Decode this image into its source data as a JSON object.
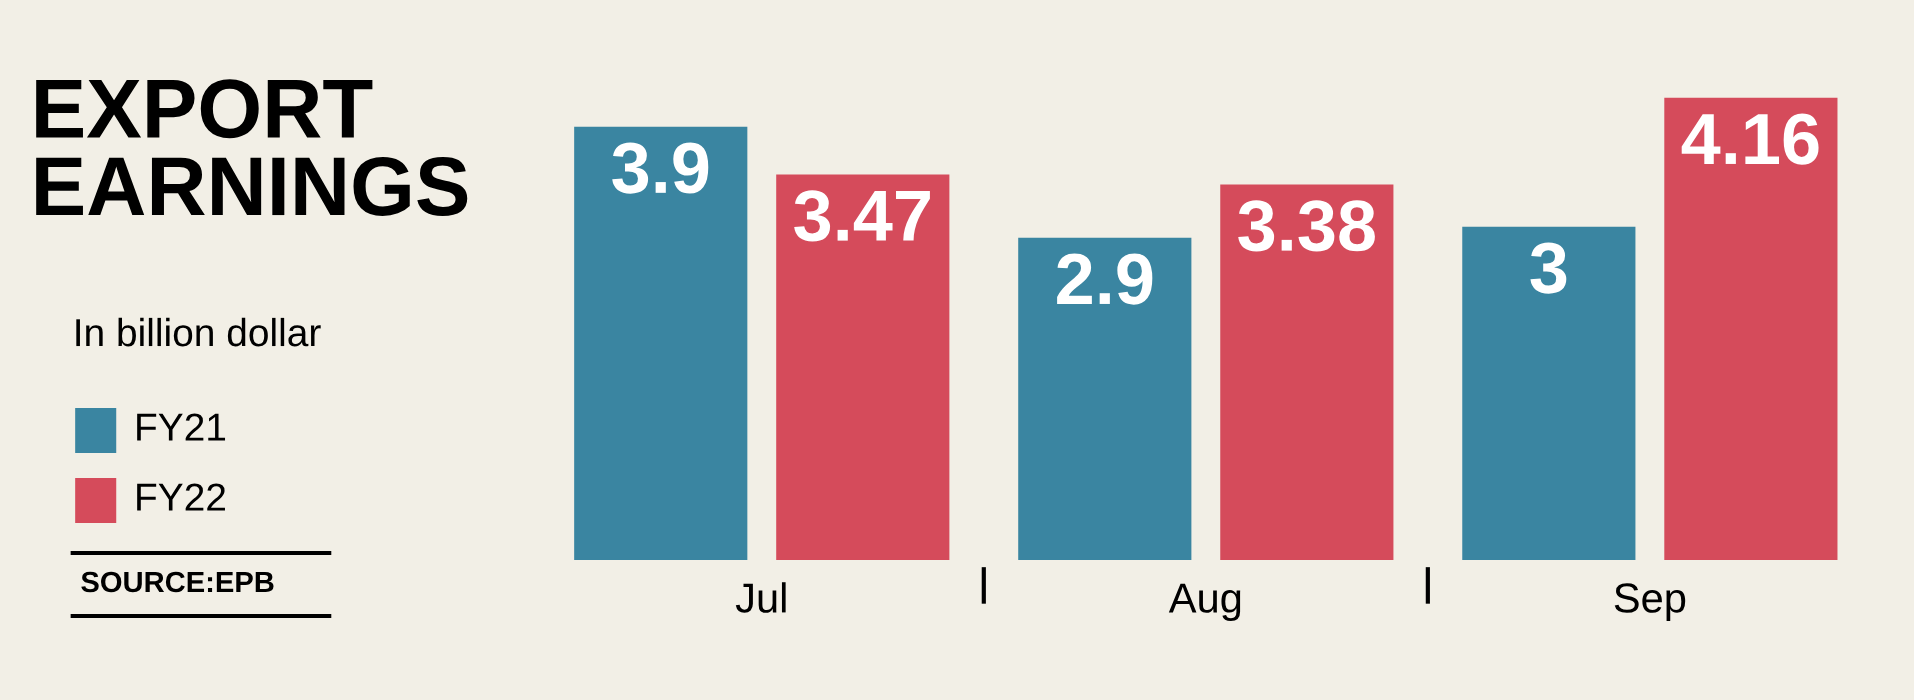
{
  "chart_data": {
    "type": "bar",
    "title": "EXPORT\nEARNINGS",
    "subtitle": "In billion dollar",
    "categories": [
      "Jul",
      "Aug",
      "Sep"
    ],
    "series": [
      {
        "name": "FY21",
        "color": "#3a85a1",
        "values": [
          3.9,
          2.9,
          3
        ]
      },
      {
        "name": "FY22",
        "color": "#d54b5b",
        "values": [
          3.47,
          3.38,
          4.16
        ]
      }
    ],
    "data_labels": true,
    "legend": "left",
    "grid": false,
    "annotations": [
      "SOURCE:EPB"
    ]
  }
}
